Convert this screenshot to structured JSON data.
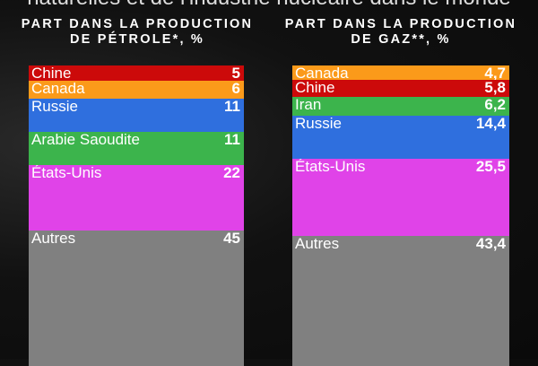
{
  "title": "naturelles et de l'industrie nucléaire dans le monde",
  "chart_data": [
    {
      "type": "bar",
      "stacked": true,
      "title": "PART DANS LA PRODUCTION DE PÉTROLE*, %",
      "categories": [
        "Chine",
        "Canada",
        "Russie",
        "Arabie Saoudite",
        "États-Unis",
        "Autres"
      ],
      "values": [
        5,
        6,
        11,
        11,
        22,
        45
      ],
      "labels": [
        "5",
        "6",
        "11",
        "11",
        "22",
        "45"
      ],
      "colors": [
        "#cc0a0a",
        "#fb9a1a",
        "#2f6fde",
        "#3cb44c",
        "#e043e8",
        "#808080"
      ]
    },
    {
      "type": "bar",
      "stacked": true,
      "title": "PART DANS LA PRODUCTION DE GAZ**, %",
      "categories": [
        "Canada",
        "Chine",
        "Iran",
        "Russie",
        "États-Unis",
        "Autres"
      ],
      "values": [
        4.7,
        5.8,
        6.2,
        14.4,
        25.5,
        43.4
      ],
      "labels": [
        "4,7",
        "5,8",
        "6,2",
        "14,4",
        "25,5",
        "43,4"
      ],
      "colors": [
        "#fb9a1a",
        "#cc0a0a",
        "#3cb44c",
        "#2f6fde",
        "#e043e8",
        "#808080"
      ]
    }
  ]
}
